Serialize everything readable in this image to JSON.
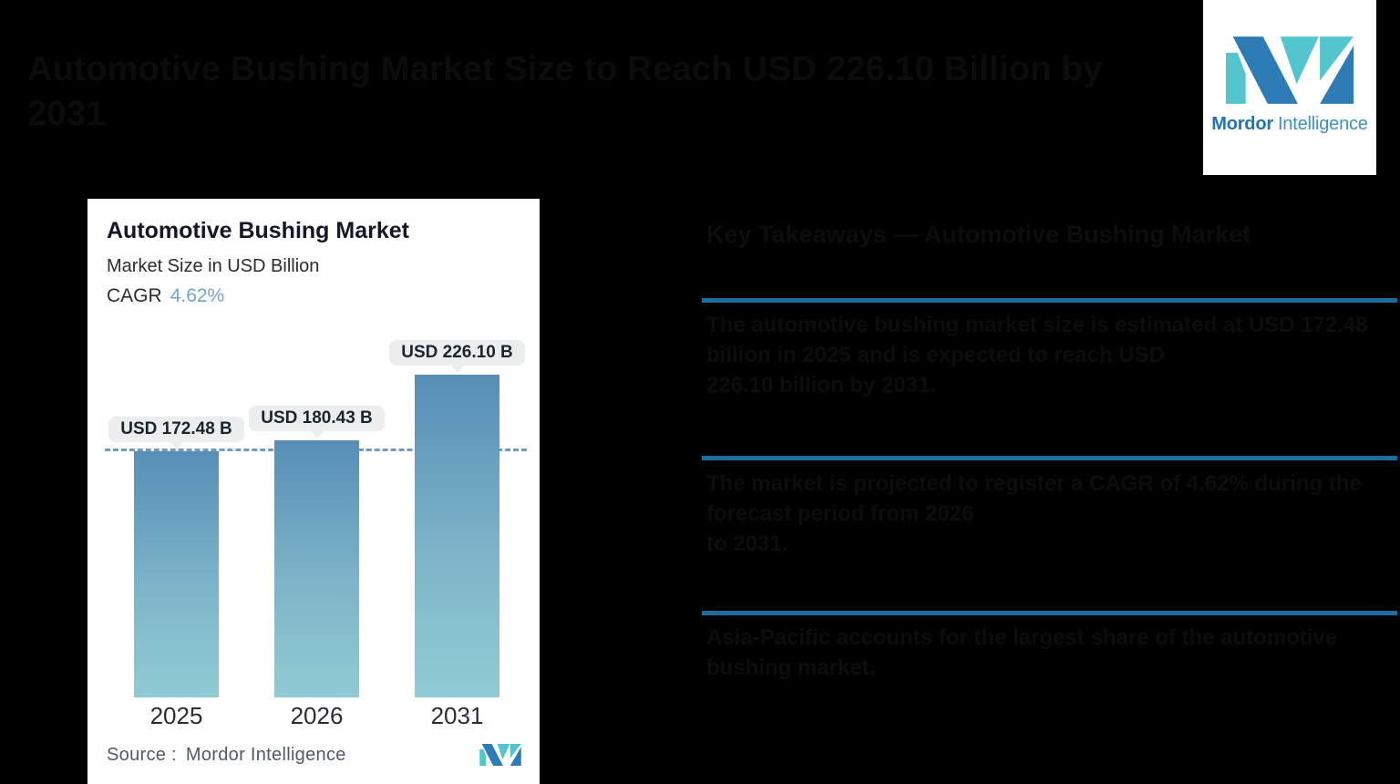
{
  "colors": {
    "background": "#000000",
    "brand_blue": "#2e7cb5",
    "brand_teal": "#52c5cd",
    "divider_blue": "#1d6e9e",
    "cagr_accent_blue": "#72a5cb",
    "bar_gradient_top": "#568eb7",
    "bar_gradient_bottom": "#90cbd4"
  },
  "header": {
    "obscured": true,
    "title_line1": "Automotive Bushing Market Size to Reach USD 226.10 Billion by",
    "title_line2": "2031"
  },
  "brand": {
    "name_bold": "Mordor",
    "name_regular": "Intelligence"
  },
  "chart_card": {
    "title": "Automotive Bushing Market",
    "subtitle": "Market Size in USD Billion",
    "cagr_label": "CAGR",
    "cagr_value": "4.62%",
    "source_label": "Source :",
    "source_value": "Mordor Intelligence"
  },
  "chart_data": {
    "type": "bar",
    "title": "Automotive Bushing Market",
    "subtitle": "Market Size in USD Billion",
    "unit": "USD Billion",
    "cagr": "4.62%",
    "categories": [
      "2025",
      "2026",
      "2031"
    ],
    "values": [
      172.48,
      180.43,
      226.1
    ],
    "value_labels": [
      "USD 172.48 B",
      "USD 180.43 B",
      "USD 226.10 B"
    ],
    "baseline_marker": {
      "style": "dashed-line",
      "value": 172.48
    },
    "ylim": [
      0,
      350
    ],
    "grid": false,
    "legend": false,
    "source": "Source :  Mordor Intelligence"
  },
  "right_panel": {
    "obscured": true,
    "heading": "Key Takeaways — Automotive Bushing Market",
    "sections": [
      {
        "obscured": true,
        "lines": [
          "The automotive bushing market size is estimated at USD 172.48 billion in 2025 and is expected to reach USD",
          "226.10 billion by 2031."
        ]
      },
      {
        "obscured": true,
        "lines": [
          "The market is projected to register a CAGR of 4.62% during the forecast period from 2026",
          "to 2031."
        ]
      },
      {
        "obscured": true,
        "lines": [
          "Asia-Pacific accounts for the largest share of the automotive bushing market."
        ]
      }
    ]
  }
}
